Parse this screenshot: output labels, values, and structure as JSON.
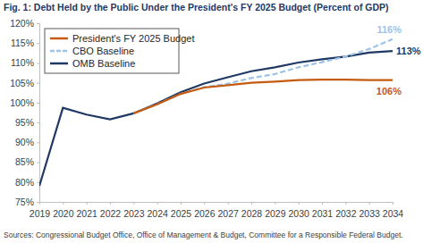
{
  "chart_data": {
    "type": "line",
    "title": "Fig. 1: Debt Held by the Public Under the President's FY 2025 Budget (Percent of GDP)",
    "source": "Sources: Congressional Budget Office, Office of Management & Budget, Committee for a Responsible Federal Budget.",
    "categories": [
      "2019",
      "2020",
      "2021",
      "2022",
      "2023",
      "2024",
      "2025",
      "2026",
      "2027",
      "2028",
      "2029",
      "2030",
      "2031",
      "2032",
      "2033",
      "2034"
    ],
    "series": [
      {
        "name": "President's FY 2025 Budget",
        "color": "#C55A11",
        "line_style": "solid",
        "values": [
          null,
          null,
          null,
          null,
          97.3,
          99.6,
          102.2,
          103.8,
          104.4,
          105.0,
          105.3,
          105.7,
          105.8,
          105.8,
          105.7,
          105.7
        ],
        "value_labels": [
          null,
          null,
          null,
          null,
          null,
          null,
          null,
          null,
          null,
          null,
          null,
          null,
          null,
          null,
          null,
          "106%"
        ]
      },
      {
        "name": "CBO Baseline",
        "color": "#9DC3E6",
        "line_style": "dashed",
        "values": [
          null,
          null,
          null,
          null,
          97.3,
          99.6,
          102.2,
          103.9,
          104.8,
          106.2,
          107.2,
          108.9,
          110.2,
          111.6,
          113.5,
          116
        ],
        "value_labels": [
          null,
          null,
          null,
          null,
          null,
          null,
          null,
          null,
          null,
          null,
          null,
          null,
          null,
          null,
          null,
          "116%"
        ]
      },
      {
        "name": "OMB Baseline",
        "color": "#1F3864",
        "line_style": "solid",
        "values": [
          79,
          98.7,
          97,
          95.8,
          97.3,
          99.8,
          102.6,
          104.8,
          106.4,
          107.9,
          108.9,
          110.1,
          110.9,
          111.6,
          112.6,
          113
        ],
        "value_labels": [
          null,
          null,
          null,
          null,
          null,
          null,
          null,
          null,
          null,
          null,
          null,
          null,
          null,
          null,
          null,
          "113%"
        ]
      }
    ],
    "ylim": [
      75,
      120
    ],
    "yticks": [
      {
        "value": 75,
        "label": "75%"
      },
      {
        "value": 80,
        "label": "80%"
      },
      {
        "value": 85,
        "label": "85%"
      },
      {
        "value": 90,
        "label": "90%"
      },
      {
        "value": 95,
        "label": "95%"
      },
      {
        "value": 100,
        "label": "100%"
      },
      {
        "value": 105,
        "label": "105%"
      },
      {
        "value": 110,
        "label": "110%"
      },
      {
        "value": 115,
        "label": "115%"
      },
      {
        "value": 120,
        "label": "120%"
      }
    ],
    "grid": false,
    "legend": "upper left",
    "data_labels": true
  }
}
